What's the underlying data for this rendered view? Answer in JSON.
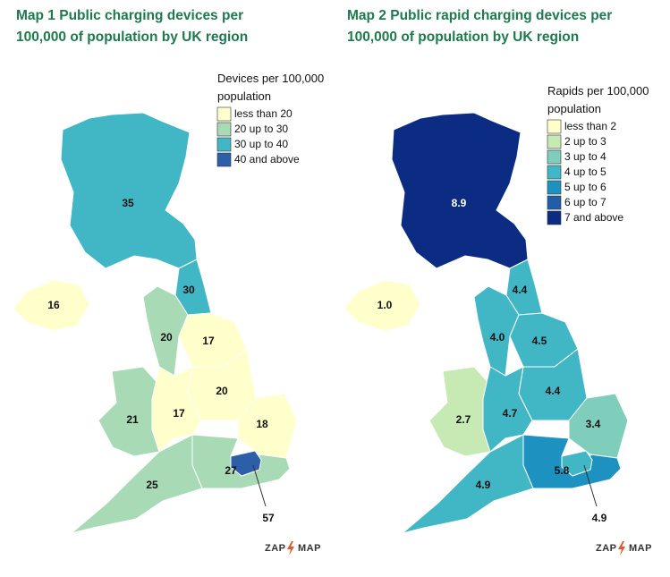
{
  "maps": [
    {
      "title": [
        "Map 1 Public charging devices per",
        "100,000 of population by UK region"
      ],
      "legend": {
        "title": [
          "Devices per 100,000",
          "population"
        ],
        "items": [
          {
            "label": "less than 20",
            "color": "#ffffcc"
          },
          {
            "label": "20 up to 30",
            "color": "#a8dab5"
          },
          {
            "label": "30 up to 40",
            "color": "#41b6c4"
          },
          {
            "label": "40 and above",
            "color": "#2c5fa8"
          }
        ]
      },
      "regions": [
        {
          "label": "35",
          "color": "#41b6c4"
        },
        {
          "label": "16",
          "color": "#ffffcc"
        },
        {
          "label": "30",
          "color": "#41b6c4"
        },
        {
          "label": "20",
          "color": "#a8dab5"
        },
        {
          "label": "17",
          "color": "#ffffcc"
        },
        {
          "label": "21",
          "color": "#a8dab5"
        },
        {
          "label": "17",
          "color": "#ffffcc"
        },
        {
          "label": "20",
          "color": "#ffffcc"
        },
        {
          "label": "18",
          "color": "#ffffcc"
        },
        {
          "label": "27",
          "color": "#a8dab5"
        },
        {
          "label": "25",
          "color": "#a8dab5"
        },
        {
          "label": "57",
          "color": "#2c5fa8"
        }
      ],
      "logo": [
        "ZAP",
        "MAP"
      ]
    },
    {
      "title": [
        "Map 2 Public rapid charging devices per",
        "100,000 of population by UK region"
      ],
      "legend": {
        "title": [
          "Rapids per 100,000",
          "population"
        ],
        "items": [
          {
            "label": "less than 2",
            "color": "#ffffcc"
          },
          {
            "label": "2 up to 3",
            "color": "#c7e9b4"
          },
          {
            "label": "3 up to 4",
            "color": "#7fcdbb"
          },
          {
            "label": "4 up to 5",
            "color": "#41b6c4"
          },
          {
            "label": "5 up to 6",
            "color": "#1d91c0"
          },
          {
            "label": "6 up to 7",
            "color": "#225ea8"
          },
          {
            "label": "7 and above",
            "color": "#0c2c84"
          }
        ]
      },
      "regions": [
        {
          "label": "8.9",
          "color": "#0c2c84"
        },
        {
          "label": "1.0",
          "color": "#ffffcc"
        },
        {
          "label": "4.4",
          "color": "#41b6c4"
        },
        {
          "label": "4.0",
          "color": "#41b6c4"
        },
        {
          "label": "4.5",
          "color": "#41b6c4"
        },
        {
          "label": "2.7",
          "color": "#c7e9b4"
        },
        {
          "label": "4.7",
          "color": "#41b6c4"
        },
        {
          "label": "4.4",
          "color": "#41b6c4"
        },
        {
          "label": "3.4",
          "color": "#7fcdbb"
        },
        {
          "label": "5.8",
          "color": "#1d91c0"
        },
        {
          "label": "4.9",
          "color": "#41b6c4"
        },
        {
          "label": "4.9",
          "color": "#41b6c4"
        }
      ],
      "logo": [
        "ZAP",
        "MAP"
      ]
    }
  ]
}
